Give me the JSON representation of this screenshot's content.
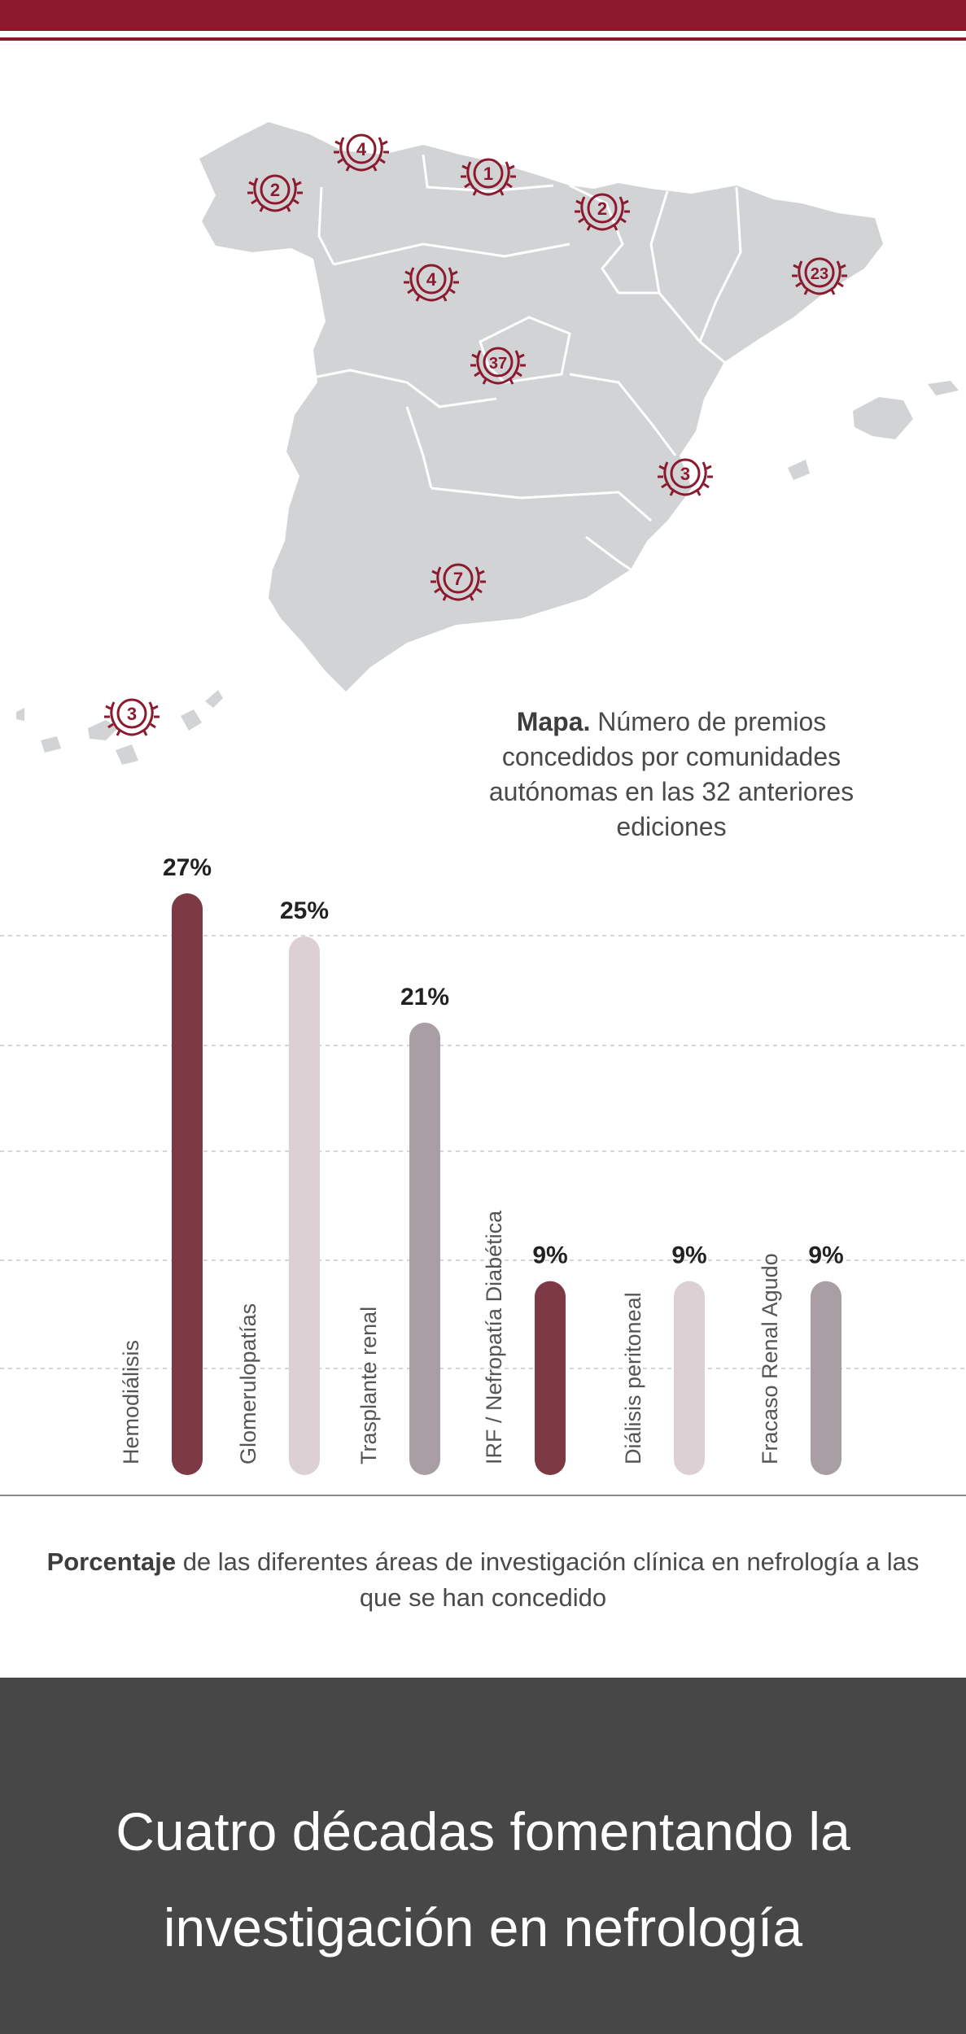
{
  "map": {
    "caption_bold": "Mapa.",
    "caption_text": " Número de premios concedidos por comunidades autónomas en las 32 anteriores ediciones",
    "badges": [
      "4",
      "2",
      "1",
      "2",
      "4",
      "23",
      "37",
      "3",
      "7",
      "3"
    ],
    "colors": {
      "land": "#d2d3d5",
      "border": "#ffffff",
      "badge": "#8c1a2e"
    }
  },
  "chart_data": {
    "type": "bar",
    "categories": [
      "Hemodiálisis",
      "Glomerulopatías",
      "Trasplante renal",
      "IRF / Nefropatía Diabética",
      "Diálisis peritoneal",
      "Fracaso Renal Agudo"
    ],
    "values": [
      27,
      25,
      21,
      9,
      9,
      9
    ],
    "value_labels": [
      "27%",
      "25%",
      "21%",
      "9%",
      "9%",
      "9%"
    ],
    "unit": "%",
    "ylim": [
      0,
      27
    ],
    "grid": true,
    "colors": [
      "#7d3a45",
      "#dcd0d5",
      "#a99ea3",
      "#7d3a45",
      "#dcd0d5",
      "#a99ea3"
    ]
  },
  "chart_caption": {
    "bold": "Porcentaje",
    "text": " de las diferentes áreas de investigación clínica en nefrología a las que se han concedido"
  },
  "footer": {
    "title": "Cuatro décadas fomentando la investigación en nefrología"
  }
}
